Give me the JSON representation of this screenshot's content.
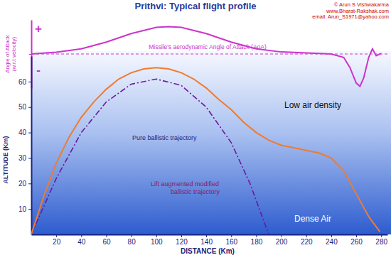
{
  "chart_data": [
    {
      "type": "line",
      "title": "Prithvi: Typical flight profile",
      "credits": [
        "© Arun S Vishwakarma",
        "www.Bharat-Rakshak.com",
        "email: Arun_S1971@yahoo.com"
      ],
      "y_label": "Angle of Attack (w.r.t velocity)",
      "annotations": [
        "+",
        "-"
      ],
      "xlim": [
        0,
        285
      ],
      "ylim": [
        -1,
        1
      ],
      "yticks": [
        0
      ],
      "grid": true,
      "tick_labels": false,
      "series": [
        {
          "name": "Missile's aerodynamic Angle of Attack (AoA)",
          "color": "#cc33cc",
          "line_style": "solid",
          "x": [
            0,
            20,
            40,
            60,
            80,
            100,
            110,
            120,
            140,
            160,
            180,
            200,
            220,
            240,
            250,
            255,
            260,
            263,
            266,
            270,
            273,
            276,
            280
          ],
          "values": [
            0,
            0.05,
            0.15,
            0.35,
            0.6,
            0.78,
            0.8,
            0.78,
            0.6,
            0.35,
            0.15,
            0.06,
            0.03,
            0,
            -0.1,
            -0.4,
            -0.85,
            -0.95,
            -0.7,
            -0.1,
            0.15,
            -0.05,
            0.02
          ]
        }
      ]
    },
    {
      "type": "line",
      "x_label": "DISTANCE (Km)",
      "y_label": "ALTITUDE (Km)",
      "annotations": [
        "Low air density",
        "Dense Air"
      ],
      "xlim": [
        0,
        285
      ],
      "ylim": [
        0,
        70
      ],
      "xticks": [
        20,
        40,
        60,
        80,
        100,
        120,
        140,
        160,
        180,
        200,
        220,
        240,
        260,
        280
      ],
      "yticks": [
        10,
        20,
        30,
        40,
        50,
        60
      ],
      "grid": false,
      "series": [
        {
          "name": "Pure ballistic trajectory",
          "color": "#6a1b9a",
          "line_style": "dashdot",
          "x": [
            0,
            20,
            40,
            60,
            80,
            100,
            120,
            140,
            160,
            175,
            190
          ],
          "values": [
            0,
            22,
            40,
            52,
            59,
            61,
            58.5,
            50,
            36,
            20,
            0
          ]
        },
        {
          "name": "Lift augmented modified ballistic trajectory",
          "color": "#f07b2e",
          "line_style": "solid",
          "x": [
            0,
            10,
            20,
            30,
            40,
            50,
            60,
            70,
            80,
            90,
            100,
            110,
            120,
            130,
            140,
            150,
            160,
            170,
            180,
            190,
            200,
            210,
            220,
            230,
            240,
            250,
            260,
            270,
            279
          ],
          "values": [
            0,
            15,
            28,
            38,
            46,
            52,
            57,
            61,
            63.5,
            65,
            65.5,
            65,
            63.5,
            61,
            57.5,
            53,
            49,
            44,
            40,
            37,
            35,
            34,
            33,
            32,
            30,
            25,
            16,
            7,
            1
          ]
        }
      ]
    }
  ]
}
